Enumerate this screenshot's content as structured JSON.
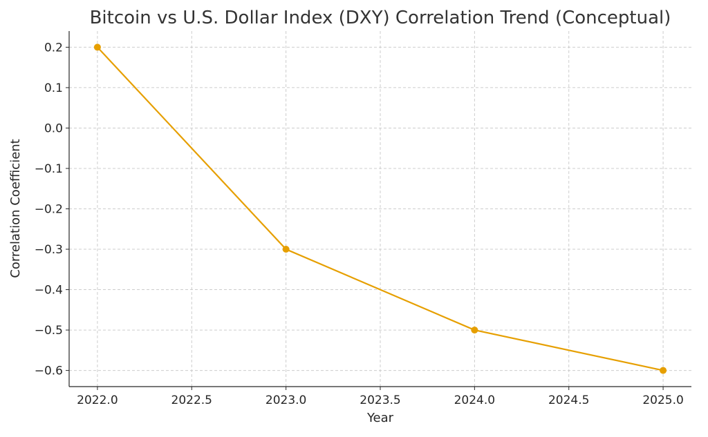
{
  "chart_data": {
    "type": "line",
    "title": "Bitcoin vs U.S. Dollar Index (DXY) Correlation Trend (Conceptual)",
    "xlabel": "Year",
    "ylabel": "Correlation Coefficient",
    "xlim": [
      2021.85,
      2025.15
    ],
    "ylim": [
      -0.64,
      0.24
    ],
    "x_ticks": [
      2022.0,
      2022.5,
      2023.0,
      2023.5,
      2024.0,
      2024.5,
      2025.0
    ],
    "x_tick_labels": [
      "2022.0",
      "2022.5",
      "2023.0",
      "2023.5",
      "2024.0",
      "2024.5",
      "2025.0"
    ],
    "y_ticks": [
      0.2,
      0.1,
      0.0,
      -0.1,
      -0.2,
      -0.3,
      -0.4,
      -0.5,
      -0.6
    ],
    "y_tick_labels": [
      "0.2",
      "0.1",
      "0.0",
      "−0.1",
      "−0.2",
      "−0.3",
      "−0.4",
      "−0.5",
      "−0.6"
    ],
    "grid": true,
    "series": [
      {
        "x": [
          2022,
          2023,
          2024,
          2025
        ],
        "values": [
          0.2,
          -0.3,
          -0.5,
          -0.6
        ],
        "color": "#e69f00",
        "marker": "circle"
      }
    ]
  }
}
